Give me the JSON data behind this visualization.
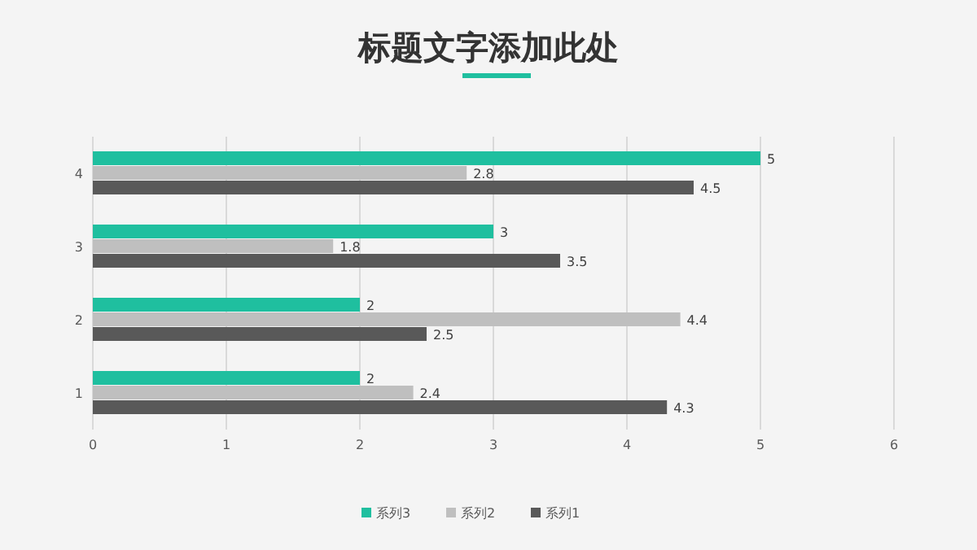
{
  "chart_data": {
    "type": "bar",
    "orientation": "horizontal",
    "title": "标题文字添加此处",
    "categories": [
      "4",
      "3",
      "2",
      "1"
    ],
    "series": [
      {
        "name": "系列3",
        "color": "#1fbf9f",
        "values": [
          5,
          3,
          2,
          2
        ]
      },
      {
        "name": "系列2",
        "color": "#bfbfbf",
        "values": [
          2.8,
          1.8,
          4.4,
          2.4
        ]
      },
      {
        "name": "系列1",
        "color": "#595959",
        "values": [
          4.5,
          3.5,
          2.5,
          4.3
        ]
      }
    ],
    "xlim": [
      0,
      6
    ],
    "xticks": [
      0,
      1,
      2,
      3,
      4,
      5,
      6
    ],
    "grid": "x",
    "legend": "bottom",
    "data_labels": true
  }
}
